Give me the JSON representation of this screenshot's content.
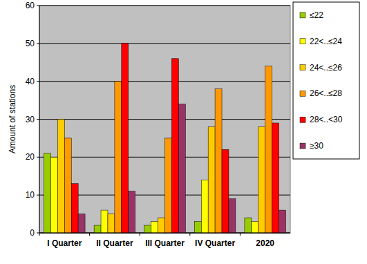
{
  "chart_data": {
    "type": "bar",
    "y_label": "Amount of stations",
    "categories": [
      "I Quarter",
      "II Quarter",
      "III Quarter",
      "IV Quarter",
      "2020"
    ],
    "series": [
      {
        "name": "≤22",
        "color": "#99cc00",
        "values": [
          21,
          2,
          2,
          3,
          4
        ]
      },
      {
        "name": "22<..≤24",
        "color": "#ffff00",
        "values": [
          20,
          6,
          3,
          14,
          3
        ]
      },
      {
        "name": "24<..≤26",
        "color": "#ffcc00",
        "values": [
          30,
          5,
          4,
          28,
          28
        ]
      },
      {
        "name": "26<..≤28",
        "color": "#ff9900",
        "values": [
          25,
          40,
          25,
          38,
          44
        ]
      },
      {
        "name": "28<..<30",
        "color": "#ff0000",
        "values": [
          13,
          50,
          46,
          22,
          29
        ]
      },
      {
        "name": "≥30",
        "color": "#993366",
        "values": [
          5,
          11,
          34,
          9,
          6
        ]
      }
    ],
    "ylim": [
      0,
      60
    ],
    "yticks": [
      0,
      10,
      20,
      30,
      40,
      50,
      60
    ],
    "grid": true,
    "legend": "top-right"
  }
}
